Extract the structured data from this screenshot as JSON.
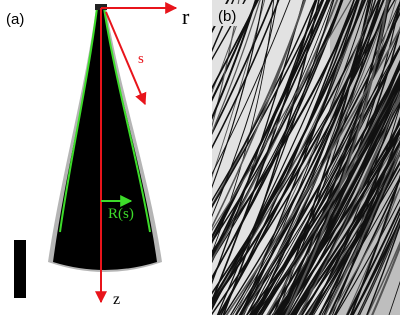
{
  "panel_a": {
    "label": "(a)",
    "r_label": "r",
    "s_label": "s",
    "radius_label": "R(s)",
    "z_label": "z"
  },
  "panel_b": {
    "label": "(b)"
  }
}
